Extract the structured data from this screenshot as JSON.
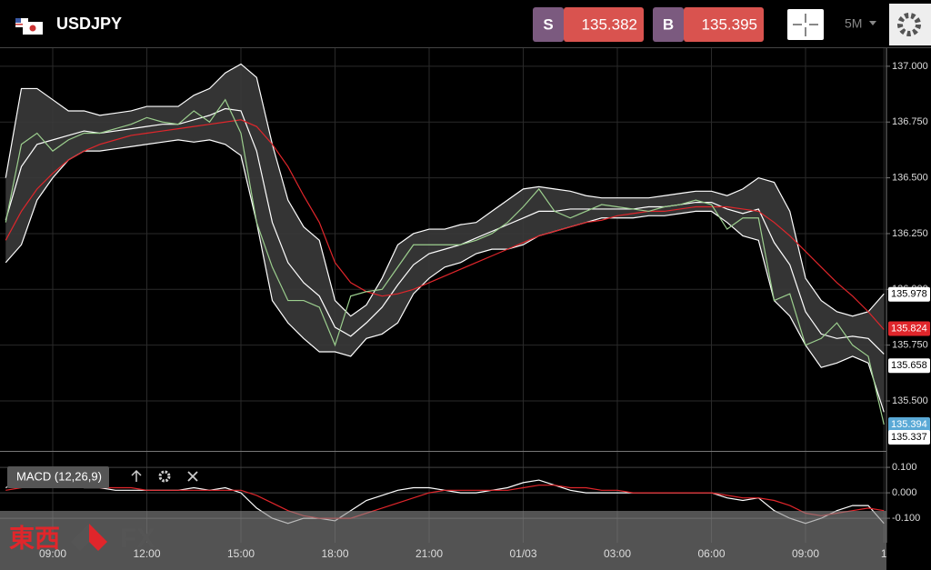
{
  "header": {
    "symbol": "USDJPY",
    "sell_label": "S",
    "sell_price": "135.382",
    "buy_label": "B",
    "buy_price": "135.395",
    "timeframe": "5M"
  },
  "watermark": {
    "kanji": "東西",
    "fx": "FX"
  },
  "chart_data": [
    {
      "type": "line",
      "categories": [
        null,
        null,
        null,
        "09:00",
        null,
        null,
        null,
        null,
        null,
        "12:00",
        null,
        null,
        null,
        null,
        null,
        "15:00",
        null,
        null,
        null,
        null,
        null,
        "18:00",
        null,
        null,
        null,
        null,
        null,
        "21:00",
        null,
        null,
        null,
        null,
        null,
        "01/03",
        null,
        null,
        null,
        null,
        null,
        "03:00",
        null,
        null,
        null,
        null,
        null,
        "06:00",
        null,
        null,
        null,
        null,
        null,
        "09:00",
        null,
        null,
        null,
        null,
        "1"
      ],
      "ylim": [
        135.276,
        137.081
      ],
      "yticks": [
        {
          "value": 137,
          "label": "137.000"
        },
        {
          "value": 136.75,
          "label": "136.750"
        },
        {
          "value": 136.5,
          "label": "136.500"
        },
        {
          "value": 136.25,
          "label": "136.250"
        },
        {
          "value": 136,
          "label": "136.000"
        },
        {
          "value": 135.75,
          "label": "135.750"
        },
        {
          "value": 135.5,
          "label": "135.500"
        }
      ],
      "grid": true,
      "band_color": "#3a3a3a",
      "series": [
        {
          "role": "upper",
          "color": "#ffffff",
          "values": [
            136.5,
            136.9,
            136.9,
            136.85,
            136.8,
            136.8,
            136.78,
            136.79,
            136.8,
            136.82,
            136.82,
            136.82,
            136.87,
            136.9,
            136.97,
            137.01,
            136.95,
            136.65,
            136.4,
            136.28,
            136.22,
            135.95,
            135.88,
            135.93,
            136.05,
            136.2,
            136.25,
            136.27,
            136.27,
            136.29,
            136.3,
            136.35,
            136.4,
            136.45,
            136.46,
            136.45,
            136.44,
            136.42,
            136.41,
            136.41,
            136.41,
            136.41,
            136.42,
            136.43,
            136.44,
            136.44,
            136.42,
            136.45,
            136.5,
            136.48,
            136.35,
            136.05,
            135.95,
            135.9,
            135.88,
            135.9,
            135.98
          ]
        },
        {
          "role": "lower",
          "color": "#ffffff",
          "values": [
            136.12,
            136.2,
            136.4,
            136.5,
            136.58,
            136.62,
            136.62,
            136.63,
            136.64,
            136.65,
            136.66,
            136.67,
            136.66,
            136.67,
            136.65,
            136.6,
            136.3,
            135.95,
            135.85,
            135.78,
            135.72,
            135.72,
            135.7,
            135.78,
            135.8,
            135.85,
            135.98,
            136.05,
            136.1,
            136.12,
            136.16,
            136.18,
            136.18,
            136.2,
            136.24,
            136.26,
            136.28,
            136.3,
            136.32,
            136.32,
            136.32,
            136.33,
            136.33,
            136.34,
            136.35,
            136.35,
            136.3,
            136.24,
            136.22,
            135.95,
            135.88,
            135.75,
            135.65,
            135.67,
            135.7,
            135.67,
            135.45
          ]
        },
        {
          "role": "middle",
          "color": "#ffffff",
          "values": [
            136.31,
            136.55,
            136.65,
            136.67,
            136.69,
            136.71,
            136.7,
            136.71,
            136.72,
            136.73,
            136.74,
            136.74,
            136.76,
            136.78,
            136.81,
            136.8,
            136.62,
            136.3,
            136.12,
            136.03,
            135.97,
            135.83,
            135.79,
            135.85,
            135.92,
            136.02,
            136.11,
            136.16,
            136.18,
            136.2,
            136.23,
            136.26,
            136.29,
            136.32,
            136.35,
            136.35,
            136.36,
            136.36,
            136.36,
            136.36,
            136.36,
            136.37,
            136.37,
            136.38,
            136.39,
            136.39,
            136.36,
            136.34,
            136.36,
            136.21,
            136.11,
            135.9,
            135.8,
            135.78,
            135.79,
            135.78,
            135.71
          ]
        },
        {
          "role": "ma",
          "color": "#e0262b",
          "values": [
            136.22,
            136.35,
            136.45,
            136.52,
            136.58,
            136.62,
            136.65,
            136.67,
            136.69,
            136.7,
            136.71,
            136.72,
            136.73,
            136.74,
            136.75,
            136.76,
            136.73,
            136.65,
            136.55,
            136.42,
            136.3,
            136.12,
            136.03,
            135.99,
            135.97,
            135.98,
            136.0,
            136.03,
            136.06,
            136.09,
            136.12,
            136.15,
            136.18,
            136.21,
            136.24,
            136.26,
            136.28,
            136.3,
            136.31,
            136.33,
            136.34,
            136.35,
            136.35,
            136.36,
            136.37,
            136.37,
            136.37,
            136.36,
            136.35,
            136.3,
            136.24,
            136.17,
            136.1,
            136.03,
            135.97,
            135.9,
            135.82
          ]
        },
        {
          "role": "close",
          "color": "#9ccf8e",
          "values": [
            136.3,
            136.65,
            136.7,
            136.62,
            136.67,
            136.7,
            136.7,
            136.72,
            136.74,
            136.77,
            136.75,
            136.74,
            136.8,
            136.75,
            136.85,
            136.7,
            136.3,
            136.1,
            135.95,
            135.95,
            135.92,
            135.75,
            135.97,
            135.99,
            136.0,
            136.1,
            136.2,
            136.2,
            136.2,
            136.2,
            136.22,
            136.25,
            136.3,
            136.37,
            136.45,
            136.35,
            136.32,
            136.35,
            136.38,
            136.37,
            136.36,
            136.35,
            136.37,
            136.38,
            136.4,
            136.38,
            136.27,
            136.32,
            136.32,
            135.95,
            135.98,
            135.75,
            135.78,
            135.85,
            135.75,
            135.7,
            135.394
          ]
        }
      ],
      "price_tags": [
        {
          "value": 135.978,
          "color": "#ffffff",
          "text_color": "#000000"
        },
        {
          "value": 135.824,
          "color": "#e0262b",
          "text_color": "#ffffff"
        },
        {
          "value": 135.658,
          "color": "#ffffff",
          "text_color": "#000000"
        },
        {
          "value": 135.394,
          "color": "#5aa9d6",
          "text_color": "#ffffff"
        },
        {
          "value": 135.337,
          "color": "#ffffff",
          "text_color": "#000000"
        }
      ]
    },
    {
      "type": "line",
      "title": "MACD (12,26,9)",
      "ylim": [
        -0.196,
        0.161
      ],
      "yticks": [
        {
          "value": 0.1,
          "label": "0.100"
        },
        {
          "value": 0,
          "label": "0.000"
        },
        {
          "value": -0.1,
          "label": "-0.100"
        }
      ],
      "series": [
        {
          "color": "#ffffff",
          "values": [
            0.02,
            0.05,
            0.04,
            0.03,
            0.03,
            0.02,
            0.02,
            0.01,
            0.01,
            0.01,
            0.01,
            0.01,
            0.02,
            0.01,
            0.02,
            0.0,
            -0.06,
            -0.1,
            -0.12,
            -0.1,
            -0.1,
            -0.11,
            -0.07,
            -0.03,
            -0.01,
            0.01,
            0.02,
            0.02,
            0.01,
            0.0,
            0.0,
            0.01,
            0.02,
            0.04,
            0.05,
            0.03,
            0.01,
            0.0,
            0.0,
            0.0,
            0.0,
            0.0,
            0.0,
            0.0,
            0.0,
            0.0,
            -0.02,
            -0.03,
            -0.02,
            -0.07,
            -0.1,
            -0.12,
            -0.1,
            -0.07,
            -0.05,
            -0.05,
            -0.12
          ]
        },
        {
          "color": "#e0262b",
          "values": [
            0.01,
            0.02,
            0.03,
            0.03,
            0.03,
            0.03,
            0.02,
            0.02,
            0.02,
            0.01,
            0.01,
            0.01,
            0.01,
            0.01,
            0.01,
            0.01,
            -0.01,
            -0.04,
            -0.07,
            -0.09,
            -0.1,
            -0.1,
            -0.1,
            -0.08,
            -0.06,
            -0.04,
            -0.02,
            0.0,
            0.01,
            0.01,
            0.01,
            0.01,
            0.01,
            0.02,
            0.03,
            0.03,
            0.02,
            0.02,
            0.01,
            0.01,
            0.0,
            0.0,
            0.0,
            0.0,
            0.0,
            0.0,
            -0.01,
            -0.02,
            -0.02,
            -0.03,
            -0.05,
            -0.08,
            -0.09,
            -0.08,
            -0.07,
            -0.06,
            -0.07
          ]
        }
      ]
    }
  ]
}
